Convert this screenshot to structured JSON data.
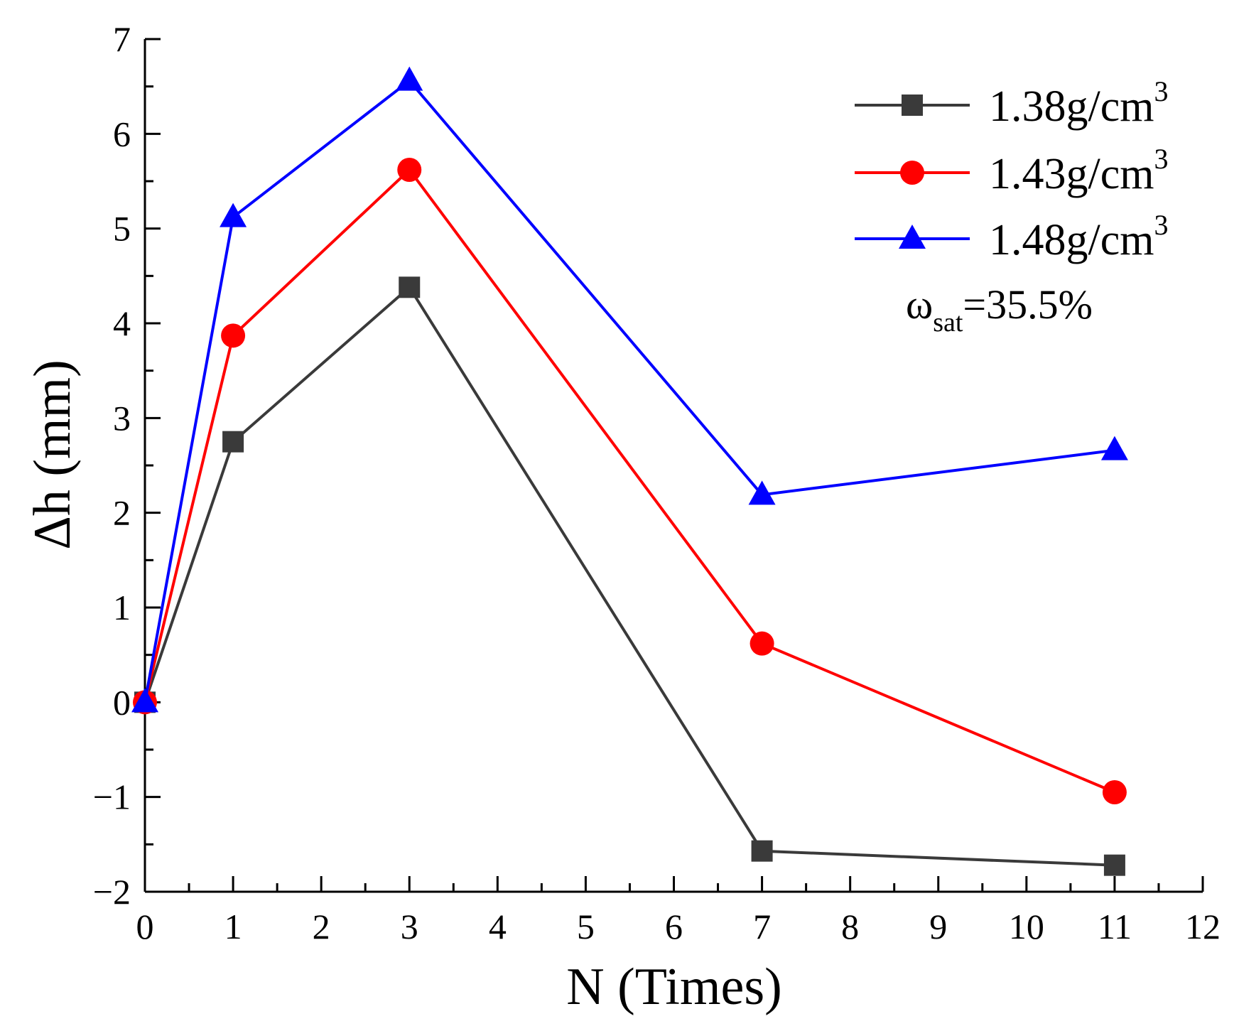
{
  "chart_data": {
    "type": "line",
    "title": "",
    "xlabel": "N (Times)",
    "ylabel": "Δh (mm)",
    "xlim": [
      0,
      12
    ],
    "ylim": [
      -2,
      7
    ],
    "x_ticks": [
      "0",
      "1",
      "2",
      "3",
      "4",
      "5",
      "6",
      "7",
      "8",
      "9",
      "10",
      "11",
      "12"
    ],
    "y_ticks": [
      "−2",
      "−1",
      "0",
      "1",
      "2",
      "3",
      "4",
      "5",
      "6",
      "7"
    ],
    "x": [
      0,
      1,
      3,
      7,
      11
    ],
    "series": [
      {
        "name": "1.38g/cm3",
        "name_base": "1.38g/cm",
        "name_sup": "3",
        "color": "#3a3a3a",
        "marker": "square",
        "values": [
          0,
          2.75,
          4.38,
          -1.57,
          -1.72
        ]
      },
      {
        "name": "1.43g/cm3",
        "name_base": "1.43g/cm",
        "name_sup": "3",
        "color": "#ff0000",
        "marker": "circle",
        "values": [
          0,
          3.87,
          5.62,
          0.62,
          -0.95
        ]
      },
      {
        "name": "1.48g/cm3",
        "name_base": "1.48g/cm",
        "name_sup": "3",
        "color": "#0000ff",
        "marker": "triangle",
        "values": [
          0,
          5.12,
          6.56,
          2.19,
          2.66
        ]
      }
    ],
    "annotation": {
      "symbol": "ω",
      "subscript": "sat",
      "text": "=35.5%"
    },
    "legend_position": "top-right",
    "grid": false
  }
}
